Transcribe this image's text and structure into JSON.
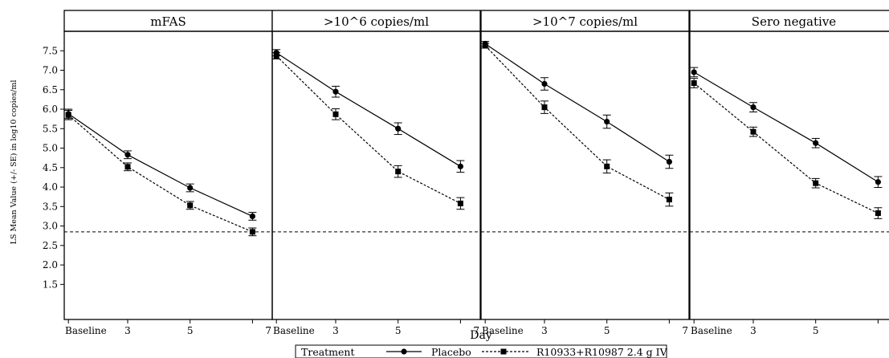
{
  "chart_data": {
    "type": "line",
    "xlabel": "Day",
    "ylabel": "LS Mean Value (+/- SE) in log10 copies/ml",
    "x": [
      "Baseline",
      "3",
      "5",
      "7"
    ],
    "yticks": [
      "1.5",
      "2.0",
      "2.5",
      "3.0",
      "3.5",
      "4.0",
      "4.5",
      "5.0",
      "5.5",
      "6.0",
      "6.5",
      "7.0",
      "7.5"
    ],
    "ylim": [
      0.6,
      8.0
    ],
    "reference_line_y": 2.85,
    "legend": {
      "title": "Treatment",
      "placement": "bottom-center",
      "entries": [
        "Placebo",
        "R10933+R10987 2.4 g IV"
      ]
    },
    "panels": [
      {
        "title": "mFAS",
        "series": [
          {
            "name": "Placebo",
            "values": [
              5.88,
              4.83,
              3.98,
              3.25
            ],
            "se": [
              0.12,
              0.1,
              0.1,
              0.1
            ]
          },
          {
            "name": "R10933+R10987 2.4 g IV",
            "values": [
              5.85,
              4.52,
              3.53,
              2.85
            ],
            "se": [
              0.12,
              0.1,
              0.1,
              0.1
            ]
          }
        ]
      },
      {
        "title": ">10^6 copies/ml",
        "series": [
          {
            "name": "Placebo",
            "values": [
              7.45,
              6.45,
              5.5,
              4.53
            ],
            "se": [
              0.08,
              0.14,
              0.15,
              0.15
            ]
          },
          {
            "name": "R10933+R10987 2.4 g IV",
            "values": [
              7.37,
              5.87,
              4.4,
              3.58
            ],
            "se": [
              0.08,
              0.14,
              0.15,
              0.15
            ]
          }
        ]
      },
      {
        "title": ">10^7 copies/ml",
        "series": [
          {
            "name": "Placebo",
            "values": [
              7.68,
              6.65,
              5.68,
              4.65
            ],
            "se": [
              0.06,
              0.16,
              0.17,
              0.17
            ]
          },
          {
            "name": "R10933+R10987 2.4 g IV",
            "values": [
              7.63,
              6.05,
              4.53,
              3.68
            ],
            "se": [
              0.06,
              0.16,
              0.17,
              0.17
            ]
          }
        ]
      },
      {
        "title": "Sero negative",
        "series": [
          {
            "name": "Placebo",
            "values": [
              6.95,
              6.05,
              5.13,
              4.13
            ],
            "se": [
              0.12,
              0.12,
              0.12,
              0.14
            ]
          },
          {
            "name": "R10933+R10987 2.4 g IV",
            "values": [
              6.67,
              5.42,
              4.1,
              3.33
            ],
            "se": [
              0.12,
              0.12,
              0.12,
              0.14
            ]
          }
        ]
      }
    ]
  }
}
